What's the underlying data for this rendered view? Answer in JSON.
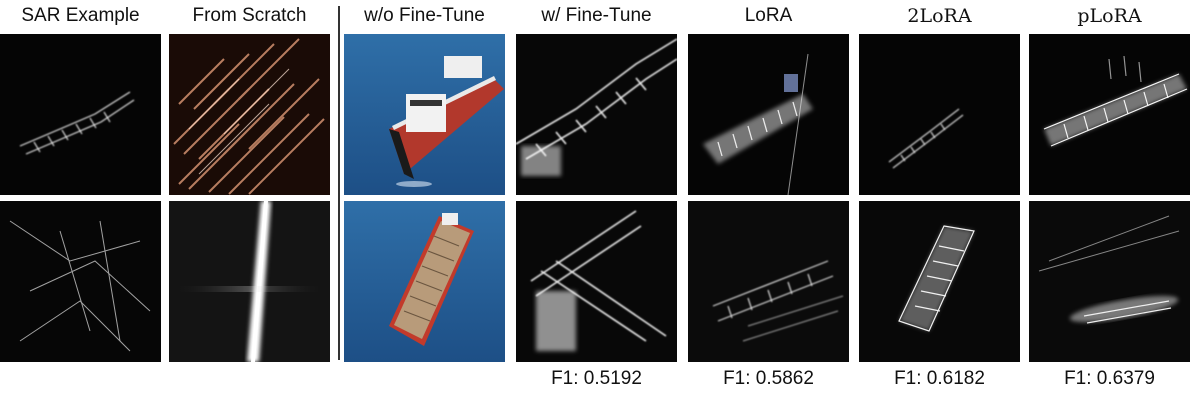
{
  "columns": [
    {
      "title": "SAR Example",
      "f1": ""
    },
    {
      "title": "From Scratch",
      "f1": ""
    },
    {
      "title": "w/o Fine-Tune",
      "f1": ""
    },
    {
      "title": "w/ Fine-Tune",
      "f1": "F1: 0.5192"
    },
    {
      "title": "LoRA",
      "f1": "F1: 0.5862"
    },
    {
      "title": "2LoRA",
      "f1": "F1: 0.6182"
    },
    {
      "title": "pLoRA",
      "f1": "F1: 0.6379"
    }
  ]
}
